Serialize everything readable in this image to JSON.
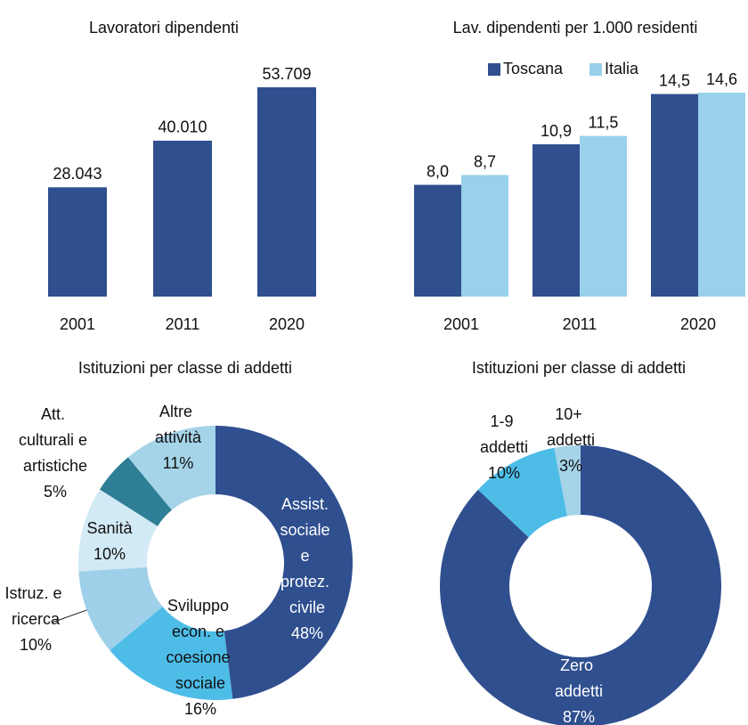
{
  "chart_data": [
    {
      "type": "bar",
      "title": "Lavoratori dipendenti",
      "categories": [
        "2001",
        "2011",
        "2020"
      ],
      "values": [
        28043,
        40010,
        53709
      ],
      "value_labels": [
        "28.043",
        "40.010",
        "53.709"
      ],
      "color": "#2f4f8f"
    },
    {
      "type": "grouped_bar",
      "title": "Lav. dipendenti per 1.000 residenti",
      "categories": [
        "2001",
        "2011",
        "2020"
      ],
      "series": [
        {
          "name": "Toscana",
          "color": "#2f4f8f",
          "values": [
            8.0,
            10.9,
            14.5
          ],
          "value_labels": [
            "8,0",
            "10,9",
            "14,5"
          ]
        },
        {
          "name": "Italia",
          "color": "#99d0ea",
          "values": [
            8.7,
            11.5,
            14.6
          ],
          "value_labels": [
            "8,7",
            "11,5",
            "14,6"
          ]
        }
      ],
      "legend": "top"
    },
    {
      "type": "donut",
      "title": "Istituzioni per classe di addetti",
      "categories": [
        "Assist. sociale e protez. civile",
        "Sviluppo econ. e coesione sociale",
        "Istruz. e ricerca",
        "Sanità",
        "Att. culturali e artistiche",
        "Altre attività"
      ],
      "values": [
        48,
        16,
        10,
        10,
        5,
        11
      ],
      "value_labels": [
        "48%",
        "16%",
        "10%",
        "10%",
        "5%",
        "11%"
      ],
      "colors": [
        "#2f4f8f",
        "#4dbde8",
        "#9fd0ea",
        "#d2eaf6",
        "#2e7f96",
        "#a5d3e8"
      ]
    },
    {
      "type": "donut",
      "title": "Istituzioni per classe di addetti",
      "categories": [
        "Zero addetti",
        "1-9 addetti",
        "10+ addetti"
      ],
      "values": [
        87,
        10,
        3
      ],
      "value_labels": [
        "87%",
        "10%",
        "3%"
      ],
      "colors": [
        "#2f4f8f",
        "#4dbde8",
        "#a5d3e8"
      ]
    }
  ]
}
